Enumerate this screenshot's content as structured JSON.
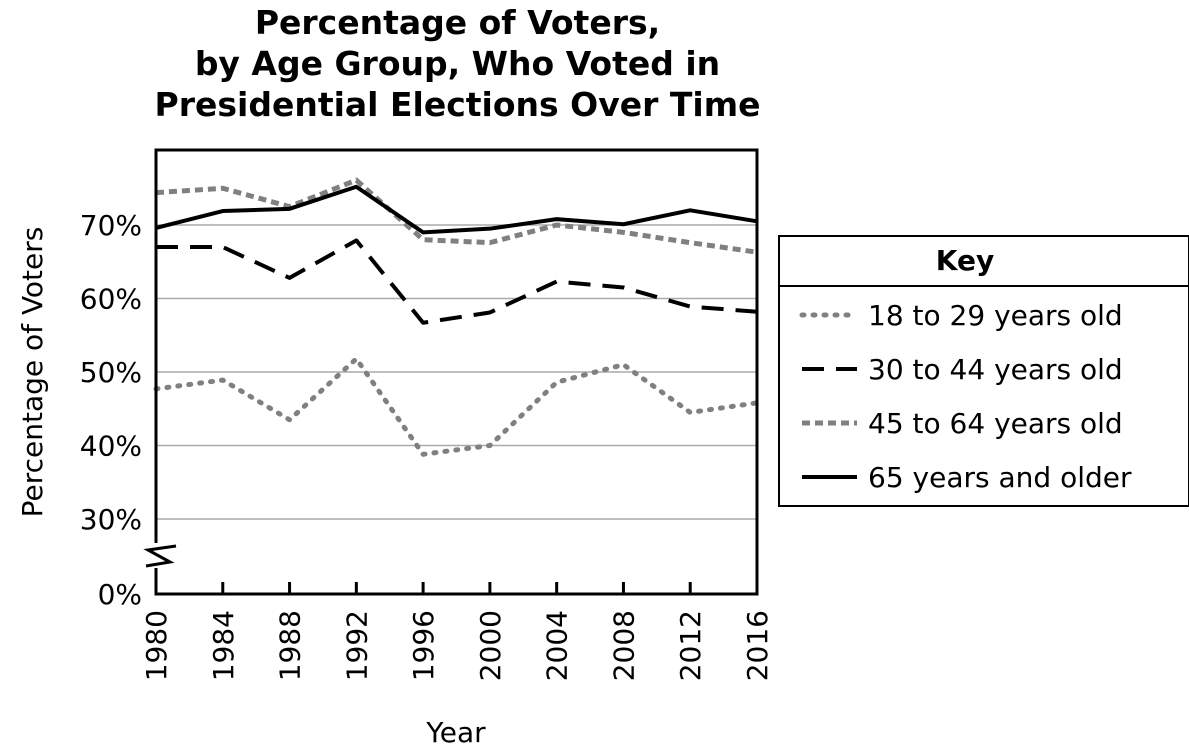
{
  "chart_data": {
    "type": "line",
    "title_lines": [
      "Percentage of Voters,",
      "by Age Group, Who Voted in",
      "Presidential Elections Over Time"
    ],
    "xlabel": "Year",
    "ylabel": "Percentage of Voters",
    "x": [
      "1980",
      "1984",
      "1988",
      "1992",
      "1996",
      "2000",
      "2004",
      "2008",
      "2012",
      "2016"
    ],
    "y_ticks": [
      "0%",
      "30%",
      "40%",
      "50%",
      "60%",
      "70%"
    ],
    "y_tick_values": [
      0,
      30,
      40,
      50,
      60,
      70
    ],
    "ylim": [
      0,
      80
    ],
    "y_axis_break": [
      0,
      30
    ],
    "grid": true,
    "legend": {
      "title": "Key",
      "placement": "right"
    },
    "series": [
      {
        "name": "18 to 29 years old",
        "style": "dotted",
        "color": "#808080",
        "values": [
          47.7,
          48.9,
          43.5,
          51.8,
          38.8,
          40.0,
          48.6,
          51.0,
          44.5,
          45.8
        ]
      },
      {
        "name": "30 to 44 years old",
        "style": "dashed",
        "color": "#000000",
        "values": [
          67.0,
          67.0,
          62.8,
          67.9,
          56.7,
          58.1,
          62.3,
          61.5,
          58.9,
          58.2
        ]
      },
      {
        "name": "45 to 64 years old",
        "style": "short-dashed",
        "color": "#808080",
        "values": [
          74.4,
          75.0,
          72.5,
          76.1,
          68.0,
          67.6,
          70.0,
          69.0,
          67.6,
          66.3
        ]
      },
      {
        "name": "65 years and older",
        "style": "solid",
        "color": "#000000",
        "values": [
          69.6,
          71.9,
          72.2,
          75.2,
          69.0,
          69.5,
          70.8,
          70.1,
          72.0,
          70.5
        ]
      }
    ]
  }
}
